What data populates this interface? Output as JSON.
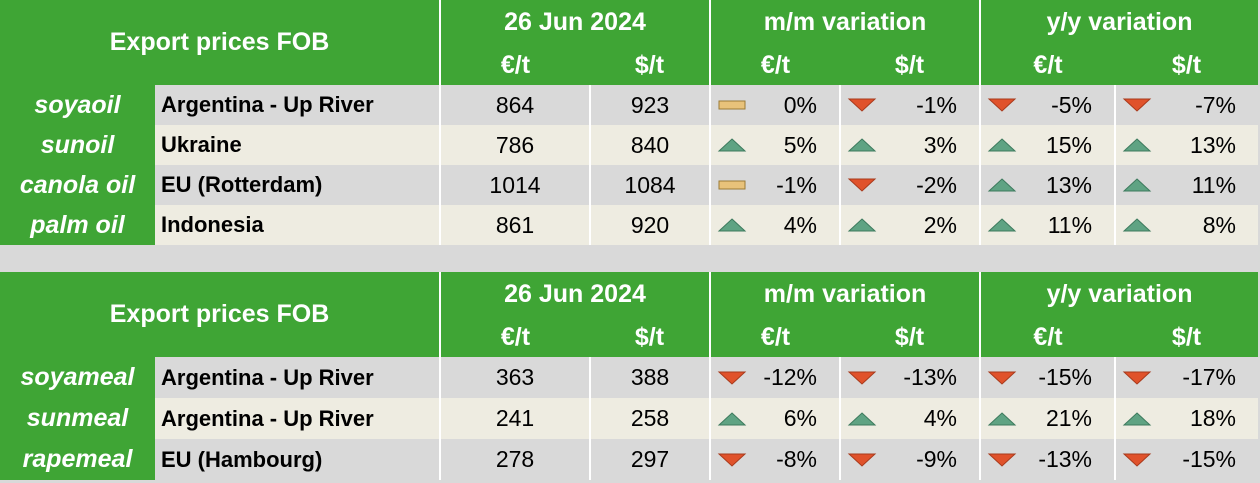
{
  "tables": [
    {
      "header": {
        "title": "Export prices FOB",
        "date": "26 Jun 2024",
        "mm": "m/m variation",
        "yy": "y/y variation",
        "units": [
          "€/t",
          "$/t",
          "€/t",
          "$/t",
          "€/t",
          "$/t"
        ]
      },
      "rows": [
        {
          "product": "soyaoil",
          "origin": "Argentina - Up River",
          "prices": [
            864,
            923
          ],
          "changes": [
            {
              "text": "0%",
              "trend": "flat"
            },
            {
              "text": "-1%",
              "trend": "down"
            },
            {
              "text": "-5%",
              "trend": "down"
            },
            {
              "text": "-7%",
              "trend": "down"
            }
          ]
        },
        {
          "product": "sunoil",
          "origin": "Ukraine",
          "prices": [
            786,
            840
          ],
          "changes": [
            {
              "text": "5%",
              "trend": "up"
            },
            {
              "text": "3%",
              "trend": "up"
            },
            {
              "text": "15%",
              "trend": "up"
            },
            {
              "text": "13%",
              "trend": "up"
            }
          ]
        },
        {
          "product": "canola oil",
          "origin": "EU (Rotterdam)",
          "prices": [
            1014,
            1084
          ],
          "changes": [
            {
              "text": "-1%",
              "trend": "flat"
            },
            {
              "text": "-2%",
              "trend": "down"
            },
            {
              "text": "13%",
              "trend": "up"
            },
            {
              "text": "11%",
              "trend": "up"
            }
          ]
        },
        {
          "product": "palm oil",
          "origin": "Indonesia",
          "prices": [
            861,
            920
          ],
          "changes": [
            {
              "text": "4%",
              "trend": "up"
            },
            {
              "text": "2%",
              "trend": "up"
            },
            {
              "text": "11%",
              "trend": "up"
            },
            {
              "text": "8%",
              "trend": "up"
            }
          ]
        }
      ]
    },
    {
      "header": {
        "title": "Export prices FOB",
        "date": "26 Jun 2024",
        "mm": "m/m variation",
        "yy": "y/y variation",
        "units": [
          "€/t",
          "$/t",
          "€/t",
          "$/t",
          "€/t",
          "$/t"
        ]
      },
      "rows": [
        {
          "product": "soyameal",
          "origin": "Argentina - Up River",
          "prices": [
            363,
            388
          ],
          "changes": [
            {
              "text": "-12%",
              "trend": "down"
            },
            {
              "text": "-13%",
              "trend": "down"
            },
            {
              "text": "-15%",
              "trend": "down"
            },
            {
              "text": "-17%",
              "trend": "down"
            }
          ]
        },
        {
          "product": "sunmeal",
          "origin": "Argentina - Up River",
          "prices": [
            241,
            258
          ],
          "changes": [
            {
              "text": "6%",
              "trend": "up"
            },
            {
              "text": "4%",
              "trend": "up"
            },
            {
              "text": "21%",
              "trend": "up"
            },
            {
              "text": "18%",
              "trend": "up"
            }
          ]
        },
        {
          "product": "rapemeal",
          "origin": "EU (Hambourg)",
          "prices": [
            278,
            297
          ],
          "changes": [
            {
              "text": "-8%",
              "trend": "down"
            },
            {
              "text": "-9%",
              "trend": "down"
            },
            {
              "text": "-13%",
              "trend": "down"
            },
            {
              "text": "-15%",
              "trend": "down"
            }
          ]
        }
      ]
    }
  ]
}
